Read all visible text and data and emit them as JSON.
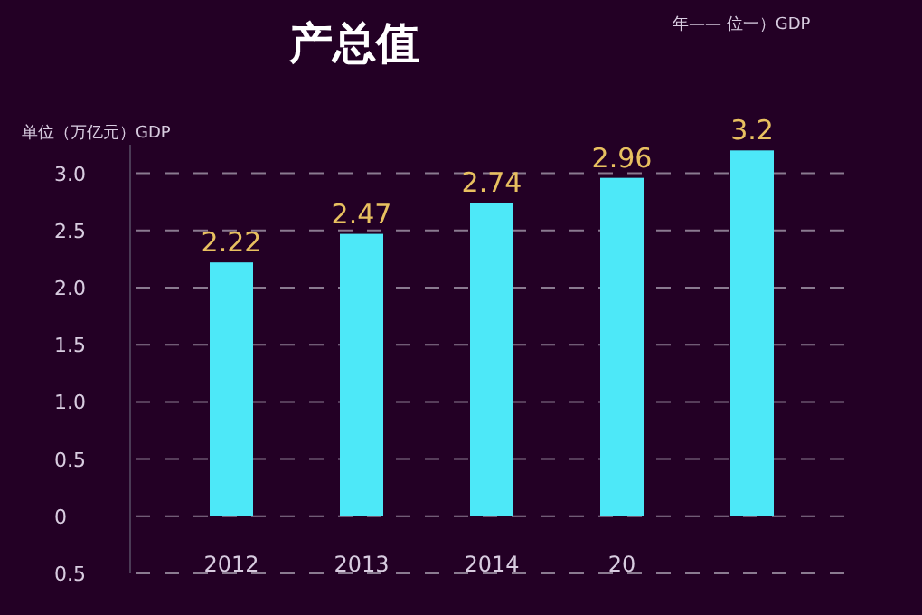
{
  "chart_data": {
    "type": "bar",
    "title": "产总值",
    "ylabel": "单位（万亿元）GDP",
    "annotations": [
      "年—— 位一）GDP"
    ],
    "categories": [
      "2012",
      "2013",
      "2014",
      "20",
      null
    ],
    "values": [
      2.22,
      2.47,
      2.74,
      2.96,
      3.2
    ],
    "color": "#4de8f8",
    "data_labels": true,
    "ylim": [
      -0.5,
      3.25
    ],
    "yticks": [
      {
        "value": -0.5,
        "label": "0.5"
      },
      0,
      0.5,
      {
        "value": 1,
        "label": "1.0"
      },
      1.5,
      {
        "value": 2,
        "label": "2.0"
      },
      2.5,
      {
        "value": 3,
        "label": "3.0"
      }
    ],
    "grid": "y"
  }
}
